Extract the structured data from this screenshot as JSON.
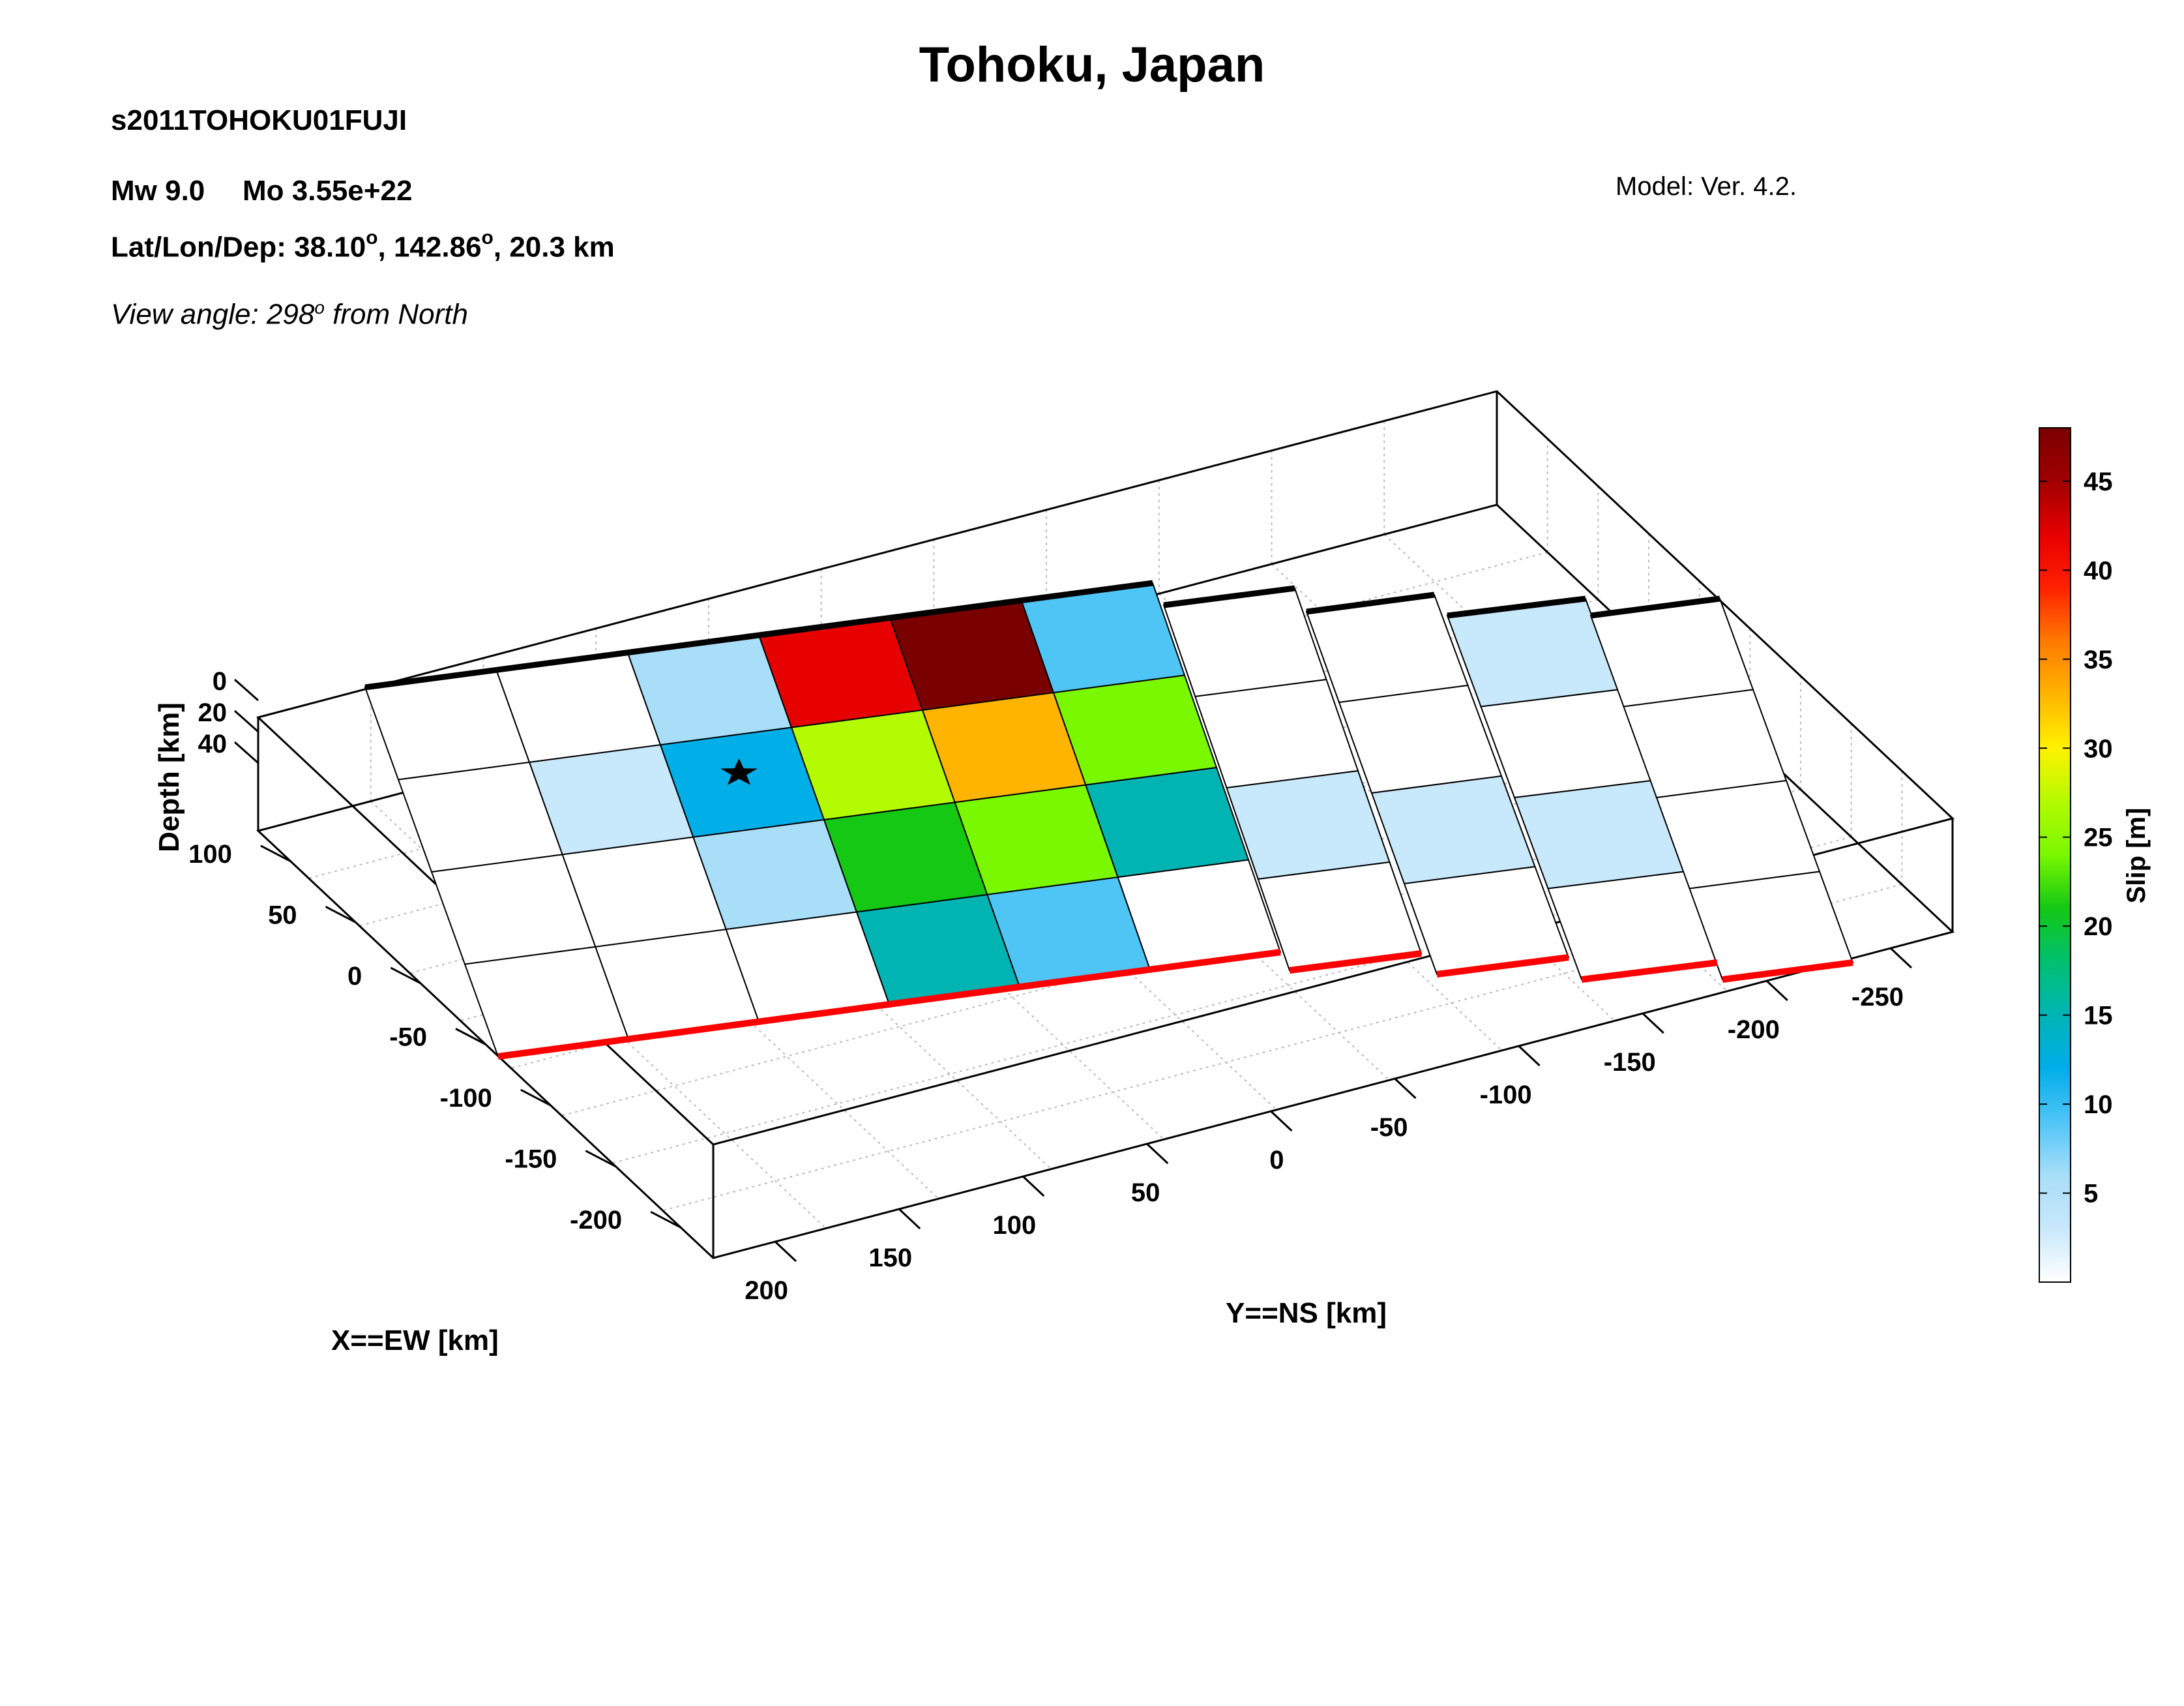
{
  "header": {
    "title": "Tohoku, Japan",
    "event_id": "s2011TOHOKU01FUJI",
    "magnitude": "Mw 9.0",
    "moment": "Mo 3.55e+22",
    "location_prefix": "Lat/Lon/Dep: 38.10",
    "location_lon": ", 142.86",
    "location_dep": ", 20.3 km",
    "degree_mark": "o",
    "view_angle_prefix": "View angle: 298",
    "view_angle_suffix": " from North",
    "model_version": "Model: Ver. 4.2."
  },
  "colors": {
    "fault_trace": "#ff0000",
    "top_edge": "#000000",
    "box_line": "#000000",
    "grid": "#bbbbbb",
    "colormap": [
      "#ffffff",
      "#c8e8fb",
      "#a8def8",
      "#4fc5f6",
      "#00aee8",
      "#00b4b4",
      "#00c070",
      "#14c814",
      "#7af800",
      "#b4fa00",
      "#fff200",
      "#ffb400",
      "#ff7a00",
      "#ff2000",
      "#e60000",
      "#a00000",
      "#7a0000"
    ]
  },
  "chart_data": {
    "type": "3d-fault-slip-model",
    "xlabel": "X==EW [km]",
    "ylabel": "Y==NS [km]",
    "zlabel": "Depth [km]",
    "colorbar_label": "Slip [m]",
    "colorbar_range": [
      0,
      48
    ],
    "colorbar_ticks": [
      5,
      10,
      15,
      20,
      25,
      30,
      35,
      40,
      45
    ],
    "x_ticks": [
      100,
      50,
      0,
      -50,
      -100,
      -150,
      -200
    ],
    "y_ticks": [
      200,
      150,
      100,
      50,
      0,
      -50,
      -100,
      -150,
      -200,
      -250
    ],
    "z_ticks": [
      0,
      20,
      40
    ],
    "grid": true,
    "hypocenter": {
      "segment": 0,
      "along_strike": 2.5,
      "down_dip": 1.4,
      "marker": "star"
    },
    "segments": [
      {
        "name": "segment-1",
        "along_strike_subfaults": 6,
        "down_dip_rows": 4,
        "slip_m": [
          [
            0,
            0,
            7,
            43,
            48,
            9
          ],
          [
            0,
            2,
            12,
            27,
            33,
            23
          ],
          [
            0,
            0,
            5,
            20,
            23,
            14
          ],
          [
            0,
            0,
            0,
            16,
            10,
            0
          ]
        ]
      },
      {
        "name": "segment-2",
        "along_strike_subfaults": 1,
        "down_dip_rows": 4,
        "slip_m": [
          [
            0
          ],
          [
            0
          ],
          [
            3
          ],
          [
            0
          ]
        ]
      },
      {
        "name": "segment-3",
        "along_strike_subfaults": 1,
        "down_dip_rows": 4,
        "slip_m": [
          [
            0
          ],
          [
            0
          ],
          [
            2
          ],
          [
            0
          ]
        ]
      },
      {
        "name": "segment-4",
        "along_strike_subfaults": 1,
        "down_dip_rows": 4,
        "slip_m": [
          [
            2
          ],
          [
            0
          ],
          [
            3
          ],
          [
            0
          ]
        ]
      },
      {
        "name": "segment-5",
        "along_strike_subfaults": 1,
        "down_dip_rows": 4,
        "slip_m": [
          [
            0
          ],
          [
            0
          ],
          [
            0
          ],
          [
            0
          ]
        ]
      }
    ]
  }
}
